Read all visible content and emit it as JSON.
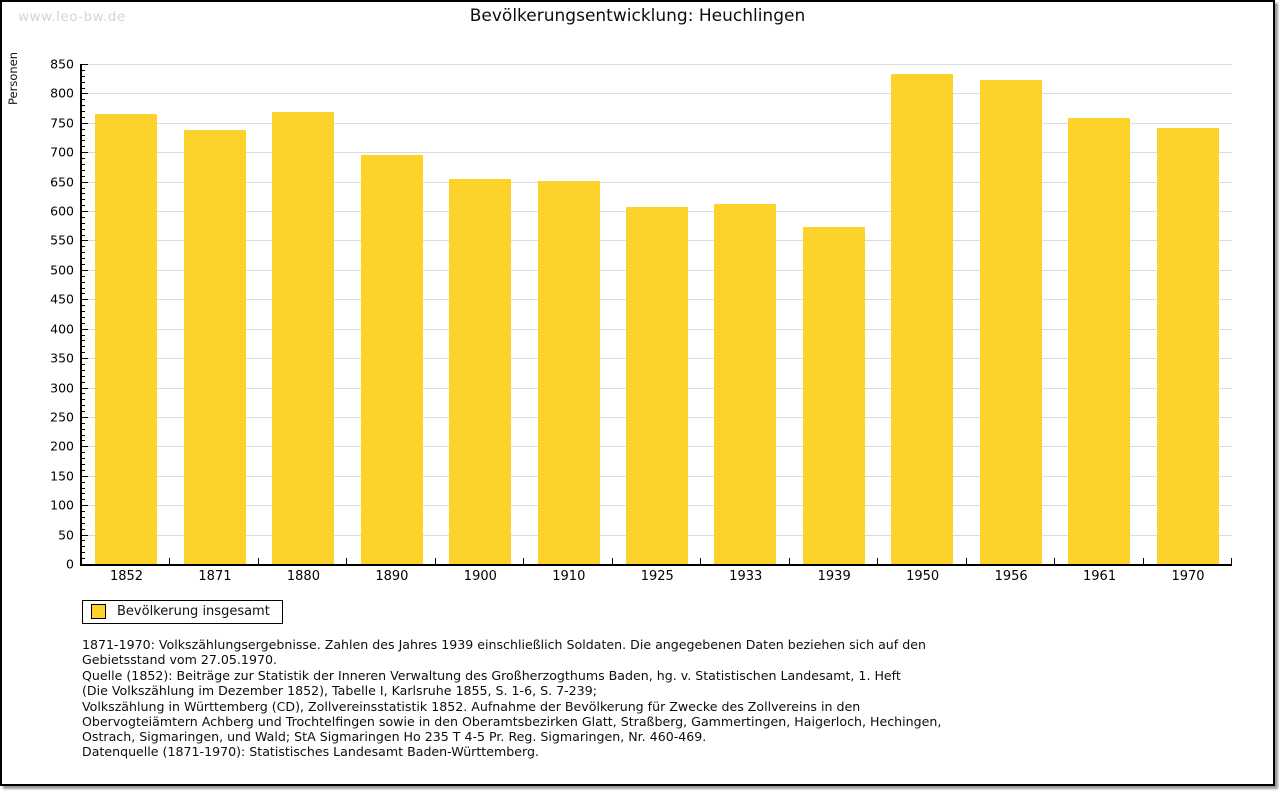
{
  "page": {
    "watermark": "www.leo-bw.de",
    "title": "Bevölkerungsentwicklung: Heuchlingen"
  },
  "chart_data": {
    "type": "bar",
    "title": "Bevölkerungsentwicklung: Heuchlingen",
    "xlabel": "",
    "ylabel": "Personen",
    "categories": [
      "1852",
      "1871",
      "1880",
      "1890",
      "1900",
      "1910",
      "1925",
      "1933",
      "1939",
      "1950",
      "1956",
      "1961",
      "1970"
    ],
    "values": [
      765,
      738,
      768,
      696,
      654,
      651,
      607,
      612,
      573,
      833,
      822,
      758,
      742
    ],
    "ylim": [
      0,
      850
    ],
    "ytick_step": 50,
    "ytick_minor_step": 10,
    "grid": true,
    "legend_position": "bottom-left",
    "legend_entries": [
      "Bevölkerung insgesamt"
    ]
  },
  "legend": {
    "label": "Bevölkerung insgesamt"
  },
  "colors": {
    "bar": "#FDD32B",
    "grid": "#DCDCDC",
    "axis": "#000000",
    "watermark": "#D5D5D5"
  },
  "footnotes": {
    "lines": [
      "1871-1970: Volkszählungsergebnisse. Zahlen des Jahres 1939 einschließlich Soldaten. Die angegebenen Daten beziehen sich auf den",
      "Gebietsstand vom 27.05.1970.",
      "Quelle (1852): Beiträge zur Statistik der Inneren Verwaltung des Großherzogthums Baden, hg. v. Statistischen Landesamt, 1. Heft",
      "(Die Volkszählung im Dezember 1852), Tabelle I, Karlsruhe 1855, S. 1-6, S. 7-239;",
      "Volkszählung in Württemberg (CD), Zollvereinsstatistik 1852. Aufnahme der Bevölkerung für Zwecke des Zollvereins in den",
      "Obervogteiämtern Achberg und Trochtelfingen sowie in den Oberamtsbezirken Glatt, Straßberg, Gammertingen, Haigerloch, Hechingen,",
      "Ostrach, Sigmaringen, und Wald; StA Sigmaringen Ho 235 T 4-5 Pr. Reg. Sigmaringen, Nr. 460-469."
    ],
    "datasource": "Datenquelle (1871-1970): Statistisches Landesamt Baden-Württemberg."
  }
}
